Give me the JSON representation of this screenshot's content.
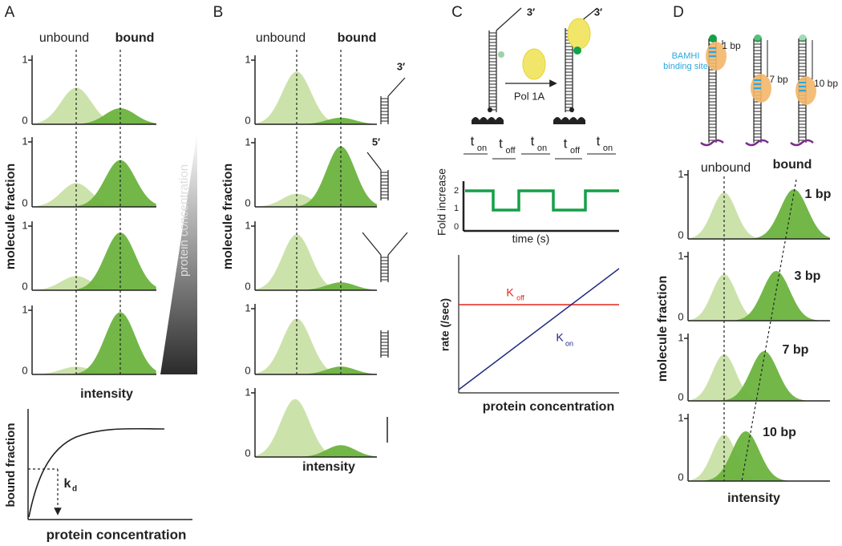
{
  "panel_a": {
    "label": "A",
    "unbound": "unbound",
    "bound": "bound",
    "y_axis": "molecule fraction",
    "x_axis": "intensity",
    "tick_1": "1",
    "tick_0": "0",
    "gradient": "protein concentration",
    "curve_y_axis": "bound fraction",
    "curve_x_axis": "protein concentration",
    "kd_main": "k",
    "kd_sub": "d"
  },
  "panel_b": {
    "label": "B",
    "unbound": "unbound",
    "bound": "bound",
    "y_axis": "molecule fraction",
    "x_axis": "intensity",
    "tick_1": "1",
    "tick_0": "0",
    "end_3": "3′",
    "end_5": "5′"
  },
  "panel_c": {
    "label": "C",
    "end_3_left": "3′",
    "end_3_right": "3′",
    "enzyme": "Pol 1A",
    "t_states": [
      {
        "main": "t",
        "sub": "on"
      },
      {
        "main": "t",
        "sub": "off"
      },
      {
        "main": "t",
        "sub": "on"
      },
      {
        "main": "t",
        "sub": "off"
      },
      {
        "main": "t",
        "sub": "on"
      }
    ],
    "trace_y_axis": "Fold increase",
    "trace_ticks": [
      "2",
      "1",
      "0"
    ],
    "trace_x_axis": "time (s)",
    "rate_y_axis": "rate (/sec)",
    "k_off": {
      "main": "K",
      "sub": "off"
    },
    "k_on": {
      "main": "K",
      "sub": "on"
    },
    "rate_x_axis": "protein concentration"
  },
  "panel_d": {
    "label": "D",
    "top_spacings": [
      "1 bp",
      "7 bp",
      "10 bp"
    ],
    "site_label": [
      "BAMHI",
      "binding site"
    ],
    "unbound": "unbound",
    "bound": "bound",
    "row_spacings": [
      "1 bp",
      "3 bp",
      "7 bp",
      "10 bp"
    ],
    "y_axis": "molecule fraction",
    "x_axis": "intensity",
    "tick_1": "1",
    "tick_0": "0"
  }
}
